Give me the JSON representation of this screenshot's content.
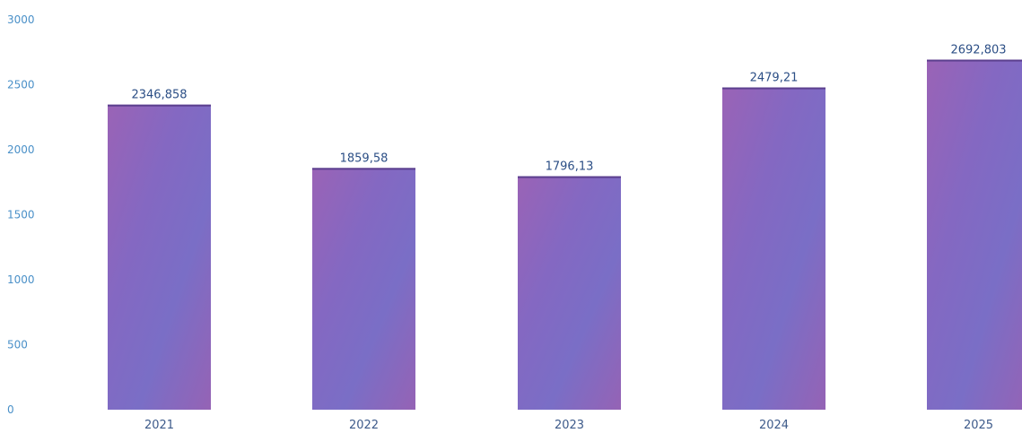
{
  "chart_data": {
    "type": "bar",
    "categories": [
      "2021",
      "2022",
      "2023",
      "2024",
      "2025"
    ],
    "values": [
      2346.858,
      1859.58,
      1796.13,
      2479.21,
      2692.803
    ],
    "value_labels": [
      "2346,858",
      "1859,58",
      "1796,13",
      "2479,21",
      "2692,803"
    ],
    "title": "",
    "xlabel": "",
    "ylabel": "",
    "ylim": [
      0,
      3000
    ],
    "yticks": [
      0,
      500,
      1000,
      1500,
      2000,
      2500,
      3000
    ],
    "grid": false,
    "legend": "none",
    "bar_color": "#8a62b8",
    "bar_color_alt": "#7b6bc4",
    "tick_label_color": "#4a90c8",
    "data_label_color": "#2c4f86"
  }
}
